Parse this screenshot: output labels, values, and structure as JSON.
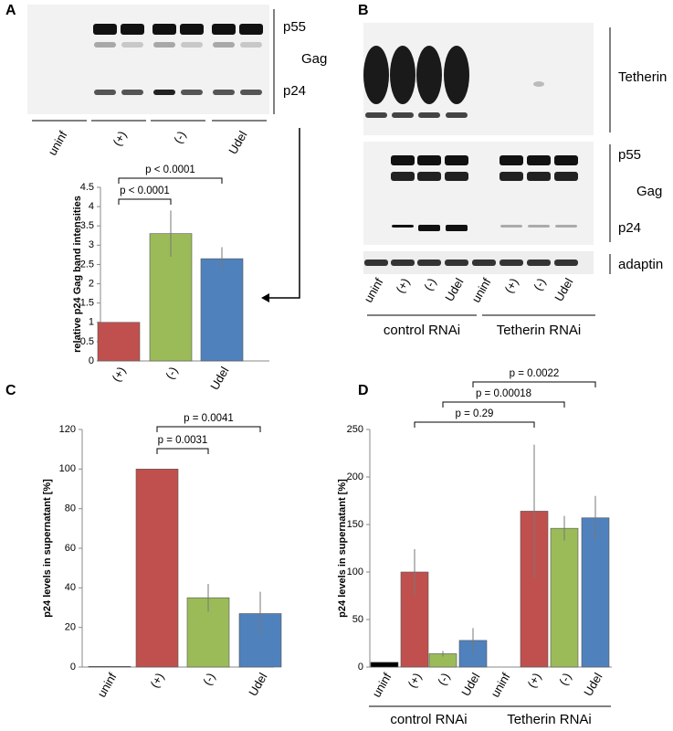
{
  "panel_labels": [
    "A",
    "B",
    "C",
    "D"
  ],
  "blot_a": {
    "lanes": [
      "uninf",
      "(+)",
      "(-)",
      "Udel"
    ],
    "labels": [
      "p55",
      "Gag",
      "p24"
    ]
  },
  "blot_b": {
    "lanes": [
      "uninf",
      "(+)",
      "(-)",
      "Udel",
      "uninf",
      "(+)",
      "(-)",
      "Udel"
    ],
    "groups": [
      "control RNAi",
      "Tetherin RNAi"
    ],
    "labels": [
      "Tetherin",
      "p55",
      "Gag",
      "p24",
      "adaptin"
    ]
  },
  "chart_data": [
    {
      "type": "bar",
      "ylabel": "relative p24 Gag band intensities",
      "categories": [
        "(+)",
        "(-)",
        "Udel"
      ],
      "values": [
        1,
        3.3,
        2.65
      ],
      "errors": [
        0,
        0.6,
        0.3
      ],
      "colors": [
        "#c0504d",
        "#9bbb59",
        "#4f81bd"
      ],
      "ylim": [
        0,
        4.5
      ],
      "yticks": [
        0,
        0.5,
        1,
        1.5,
        2,
        2.5,
        3,
        3.5,
        4,
        4.5
      ],
      "annotations": [
        "p < 0.0001",
        "p < 0.0001"
      ]
    },
    {
      "type": "bar",
      "ylabel": "p24 levels in supernatant [%]",
      "categories": [
        "uninf",
        "(+)",
        "(-)",
        "Udel"
      ],
      "values": [
        0.3,
        100,
        35,
        27
      ],
      "errors": [
        0,
        0,
        7,
        11
      ],
      "colors": [
        "#000000",
        "#c0504d",
        "#9bbb59",
        "#4f81bd"
      ],
      "ylim": [
        0,
        120
      ],
      "yticks": [
        0,
        20,
        40,
        60,
        80,
        100,
        120
      ],
      "annotations": [
        "p = 0.0041",
        "p = 0.0031"
      ]
    },
    {
      "type": "bar",
      "ylabel": "p24 levels in supernatant [%]",
      "categories": [
        "uninf",
        "(+)",
        "(-)",
        "Udel",
        "uninf",
        "(+)",
        "(-)",
        "Udel"
      ],
      "values": [
        5,
        100,
        14,
        28,
        0,
        164,
        146,
        157
      ],
      "errors": [
        0,
        24,
        3,
        13,
        0,
        70,
        13,
        23
      ],
      "colors": [
        "#000000",
        "#c0504d",
        "#9bbb59",
        "#4f81bd",
        "#000000",
        "#c0504d",
        "#9bbb59",
        "#4f81bd"
      ],
      "groups": [
        "control RNAi",
        "Tetherin RNAi"
      ],
      "ylim": [
        0,
        250
      ],
      "yticks": [
        0,
        50,
        100,
        150,
        200,
        250
      ],
      "annotations": [
        "p = 0.0022",
        "p = 0.00018",
        "p = 0.29"
      ]
    }
  ]
}
